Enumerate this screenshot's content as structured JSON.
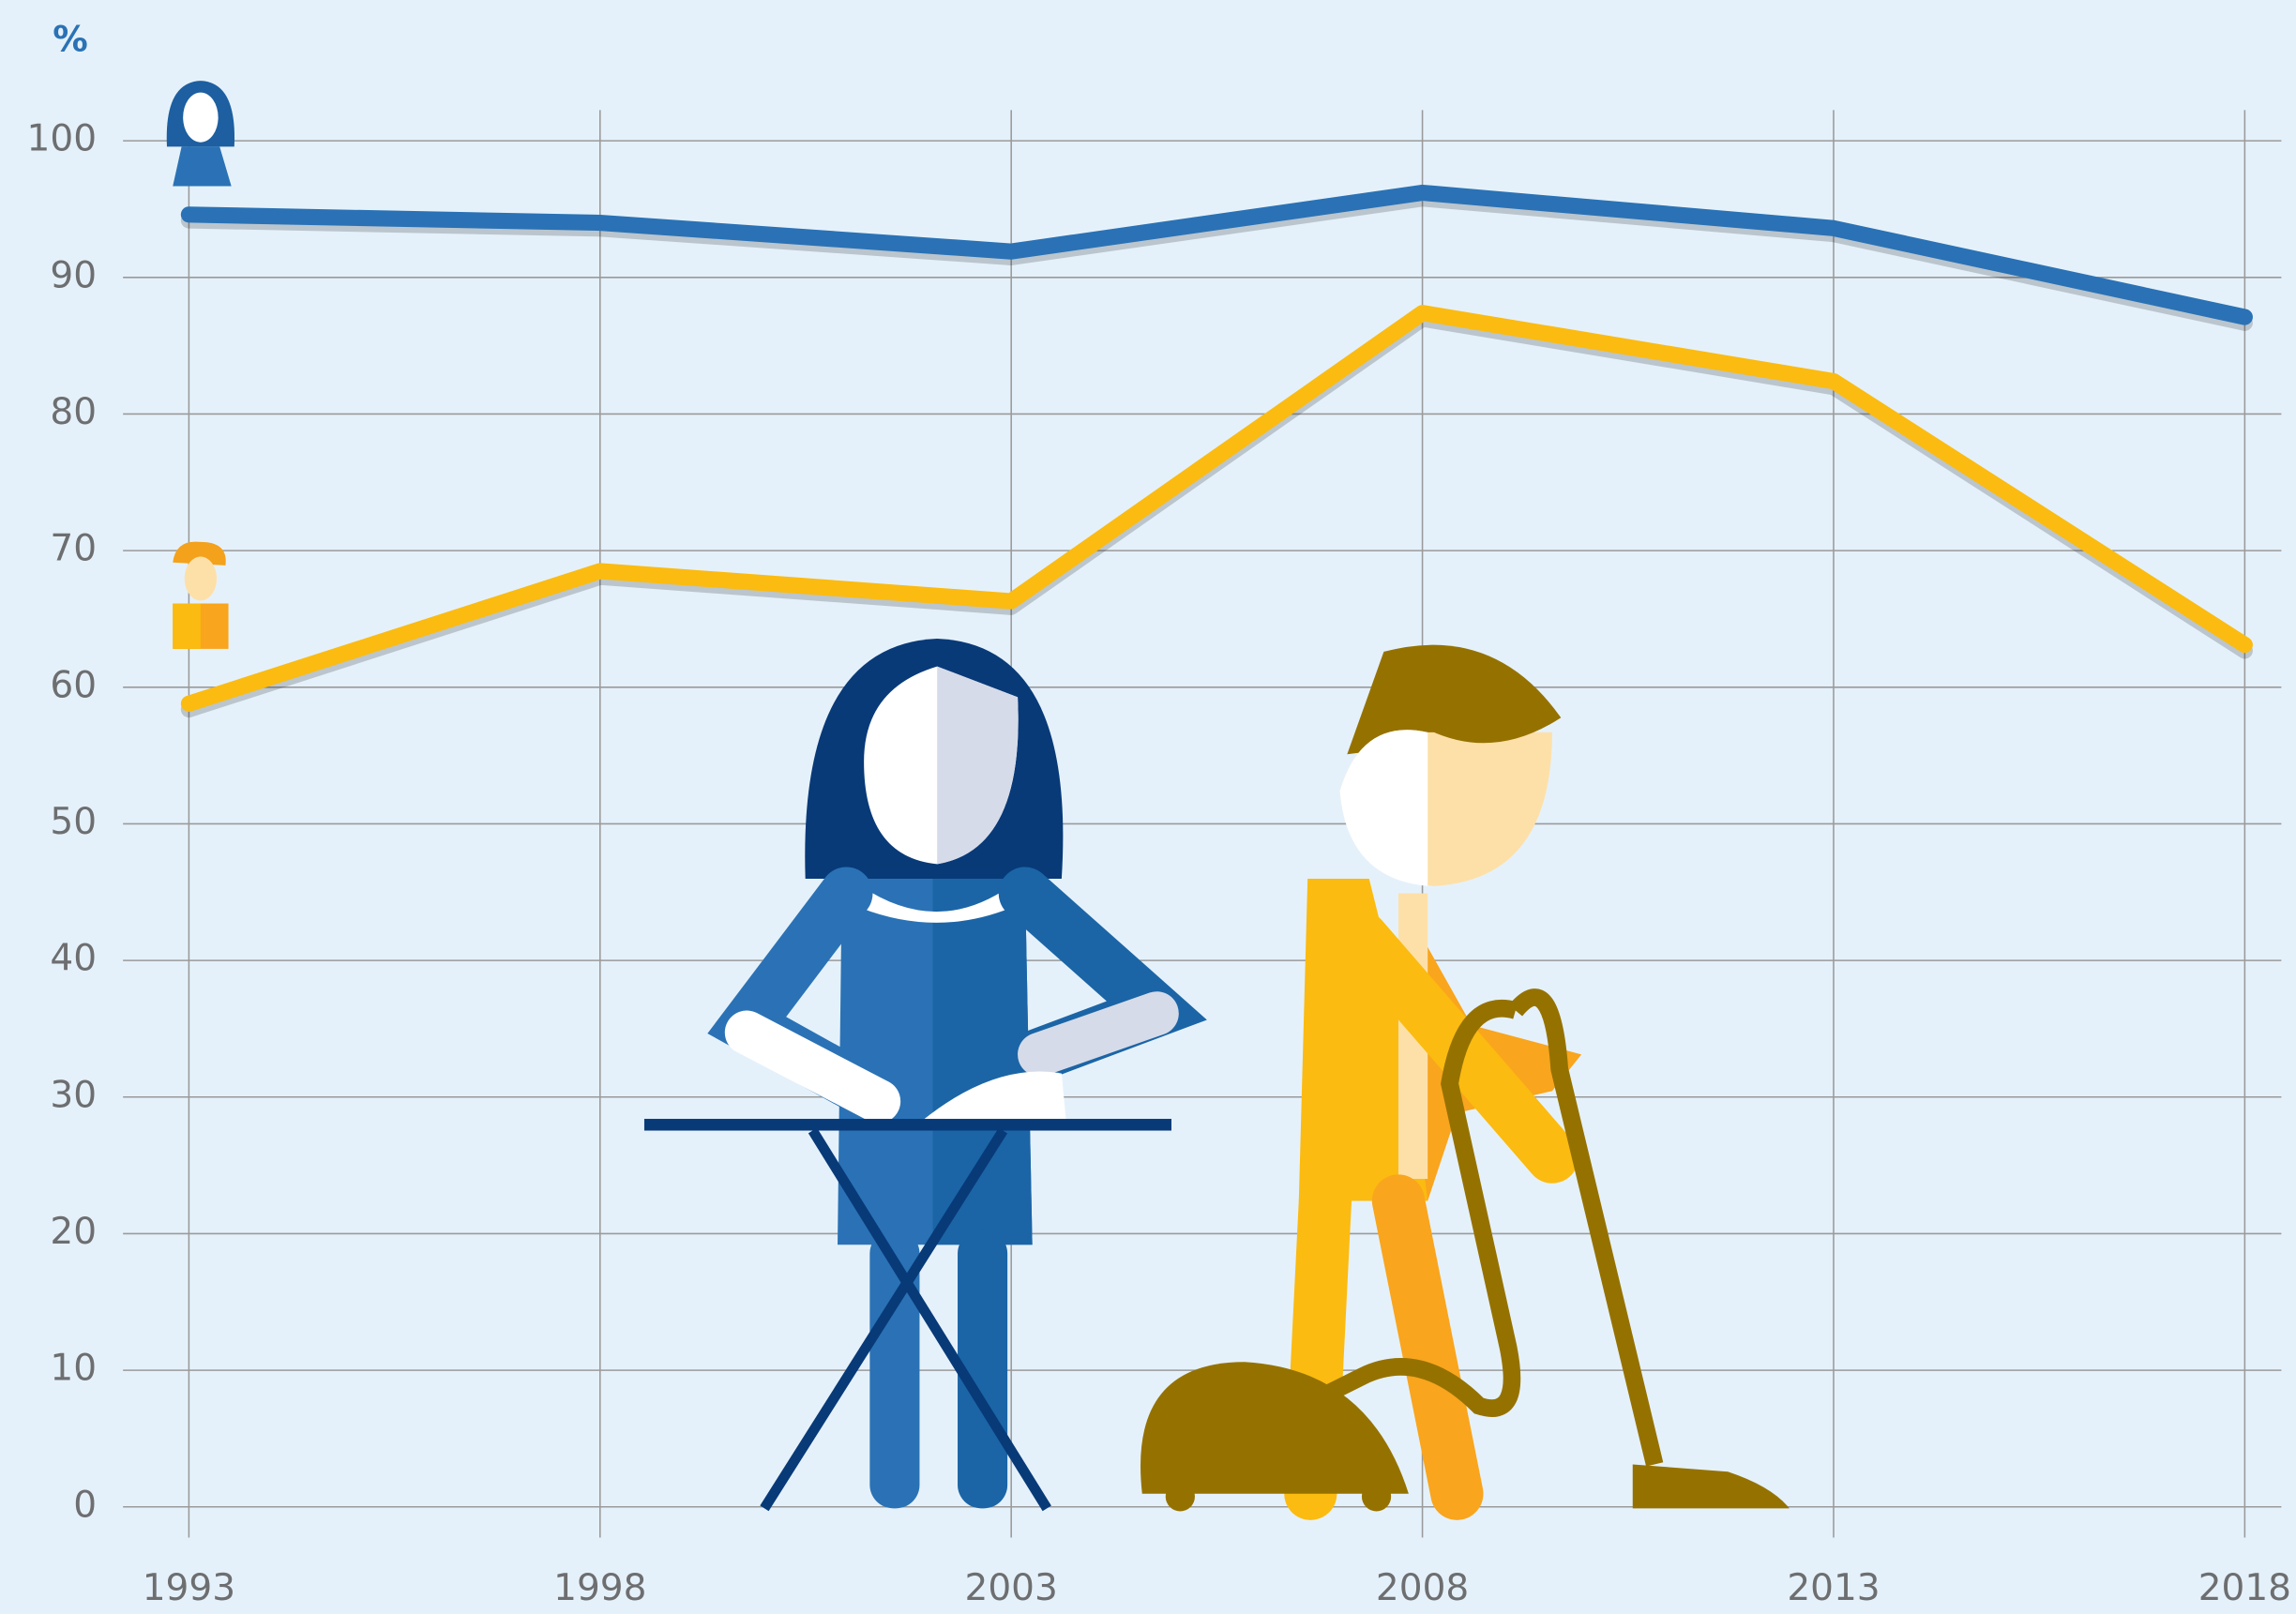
{
  "chart_data": {
    "type": "line",
    "y_label": "%",
    "x": [
      1993,
      1998,
      2003,
      2008,
      2013,
      2018
    ],
    "xlim": [
      1993,
      2018
    ],
    "xticks": [
      1993,
      1998,
      2003,
      2008,
      2013,
      2018
    ],
    "ylim": [
      0,
      100
    ],
    "yticks": [
      0,
      10,
      20,
      30,
      40,
      50,
      60,
      70,
      80,
      90,
      100
    ],
    "grid": true,
    "series": [
      {
        "color": "#2a72b5",
        "values": [
          94.6,
          94.0,
          91.9,
          96.2,
          93.6,
          87.1
        ]
      },
      {
        "color": "#fbbb10",
        "values": [
          58.8,
          68.5,
          66.3,
          87.4,
          82.4,
          63.1
        ]
      }
    ]
  }
}
